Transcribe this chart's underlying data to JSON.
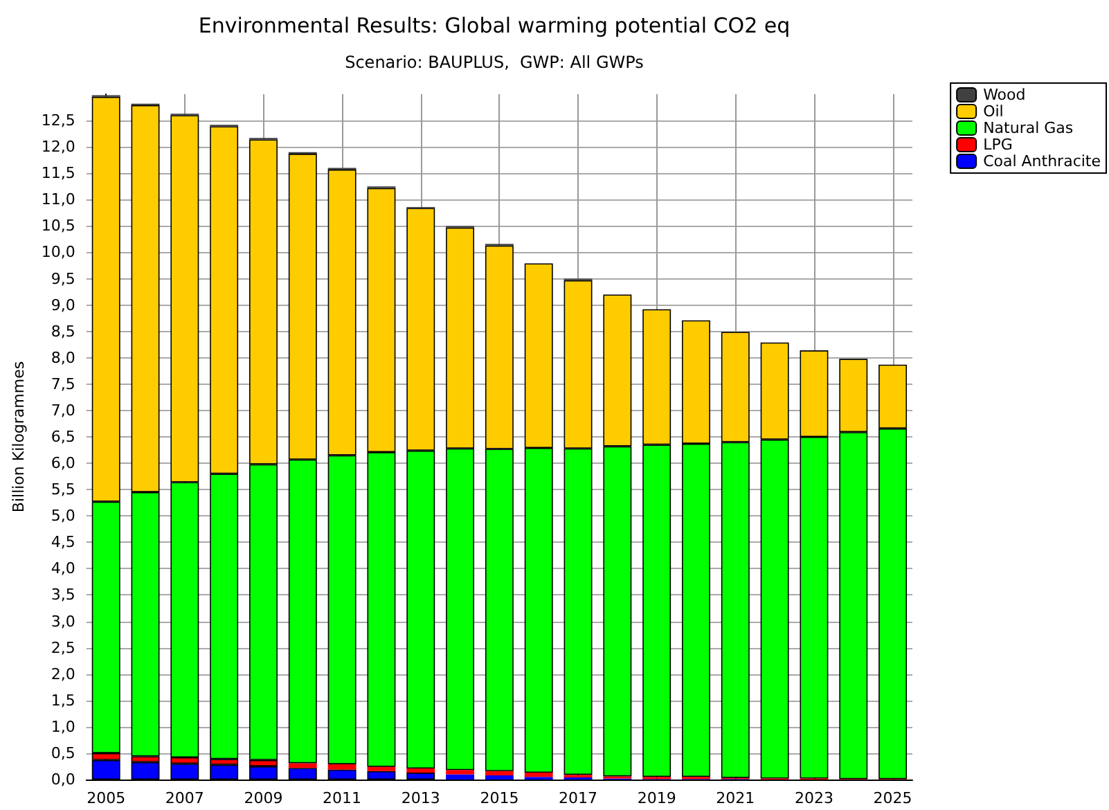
{
  "chart_data": {
    "type": "bar",
    "title": "Environmental Results: Global warming potential CO2 eq",
    "subtitle": "Scenario: BAUPLUS,  GWP: All GWPs",
    "ylabel": "Billion Kilogrammes",
    "categories": [
      "2005",
      null,
      "2007",
      null,
      "2009",
      null,
      "2011",
      null,
      "2013",
      null,
      "2015",
      null,
      "2017",
      null,
      "2019",
      null,
      "2021",
      null,
      "2023",
      null,
      "2025"
    ],
    "stacked": true,
    "series": [
      {
        "name": "Coal Anthracite",
        "color": "#0000ff",
        "values": [
          0.37,
          0.33,
          0.3,
          0.28,
          0.25,
          0.22,
          0.19,
          0.16,
          0.13,
          0.1,
          0.08,
          0.05,
          0.04,
          0.02,
          0.01,
          0.01,
          0.01,
          0,
          0,
          0,
          0
        ]
      },
      {
        "name": "LPG",
        "color": "#ff0000",
        "values": [
          0.13,
          0.11,
          0.12,
          0.11,
          0.12,
          0.09,
          0.1,
          0.08,
          0.08,
          0.08,
          0.08,
          0.08,
          0.05,
          0.04,
          0.04,
          0.04,
          0.02,
          0.02,
          0.02,
          0.01,
          0.01
        ]
      },
      {
        "name": "Natural Gas",
        "color": "#00ff00",
        "values": [
          4.77,
          5.01,
          5.22,
          5.41,
          5.61,
          5.76,
          5.86,
          5.97,
          6.03,
          6.1,
          6.11,
          6.16,
          6.19,
          6.26,
          6.3,
          6.32,
          6.37,
          6.43,
          6.48,
          6.58,
          6.65
        ]
      },
      {
        "name": "Oil",
        "color": "#ffcc00",
        "values": [
          7.68,
          7.34,
          6.96,
          6.59,
          6.16,
          5.8,
          5.42,
          5.01,
          4.6,
          4.19,
          3.86,
          3.5,
          3.19,
          2.88,
          2.57,
          2.34,
          2.09,
          1.84,
          1.64,
          1.39,
          1.21
        ]
      },
      {
        "name": "Wood",
        "color": "#404040",
        "values": [
          0.03,
          0.03,
          0.03,
          0.03,
          0.03,
          0.03,
          0.03,
          0.03,
          0.02,
          0.03,
          0.03,
          null,
          0.03,
          null,
          null,
          null,
          null,
          null,
          null,
          null,
          null
        ]
      }
    ],
    "ylim": [
      0,
      13
    ],
    "yticks": [
      {
        "value": 0,
        "label": "0,0"
      },
      {
        "value": 0.5,
        "label": "0,5"
      },
      {
        "value": 1,
        "label": "1,0"
      },
      {
        "value": 1.5,
        "label": "1,5"
      },
      {
        "value": 2,
        "label": "2,0"
      },
      {
        "value": 2.5,
        "label": "2,5"
      },
      {
        "value": 3,
        "label": "3,0"
      },
      {
        "value": 3.5,
        "label": "3,5"
      },
      {
        "value": 4,
        "label": "4,0"
      },
      {
        "value": 4.5,
        "label": "4,5"
      },
      {
        "value": 5,
        "label": "5,0"
      },
      {
        "value": 5.5,
        "label": "5,5"
      },
      {
        "value": 6,
        "label": "6,0"
      },
      {
        "value": 6.5,
        "label": "6,5"
      },
      {
        "value": 7,
        "label": "7,0"
      },
      {
        "value": 7.5,
        "label": "7,5"
      },
      {
        "value": 8,
        "label": "8,0"
      },
      {
        "value": 8.5,
        "label": "8,5"
      },
      {
        "value": 9,
        "label": "9,0"
      },
      {
        "value": 9.5,
        "label": "9,5"
      },
      {
        "value": 10,
        "label": "10,0"
      },
      {
        "value": 10.5,
        "label": "10,5"
      },
      {
        "value": 11,
        "label": "11,0"
      },
      {
        "value": 11.5,
        "label": "11,5"
      },
      {
        "value": 12,
        "label": "12,0"
      },
      {
        "value": 12.5,
        "label": "12,5"
      }
    ],
    "grid": true,
    "legend": "top right"
  }
}
